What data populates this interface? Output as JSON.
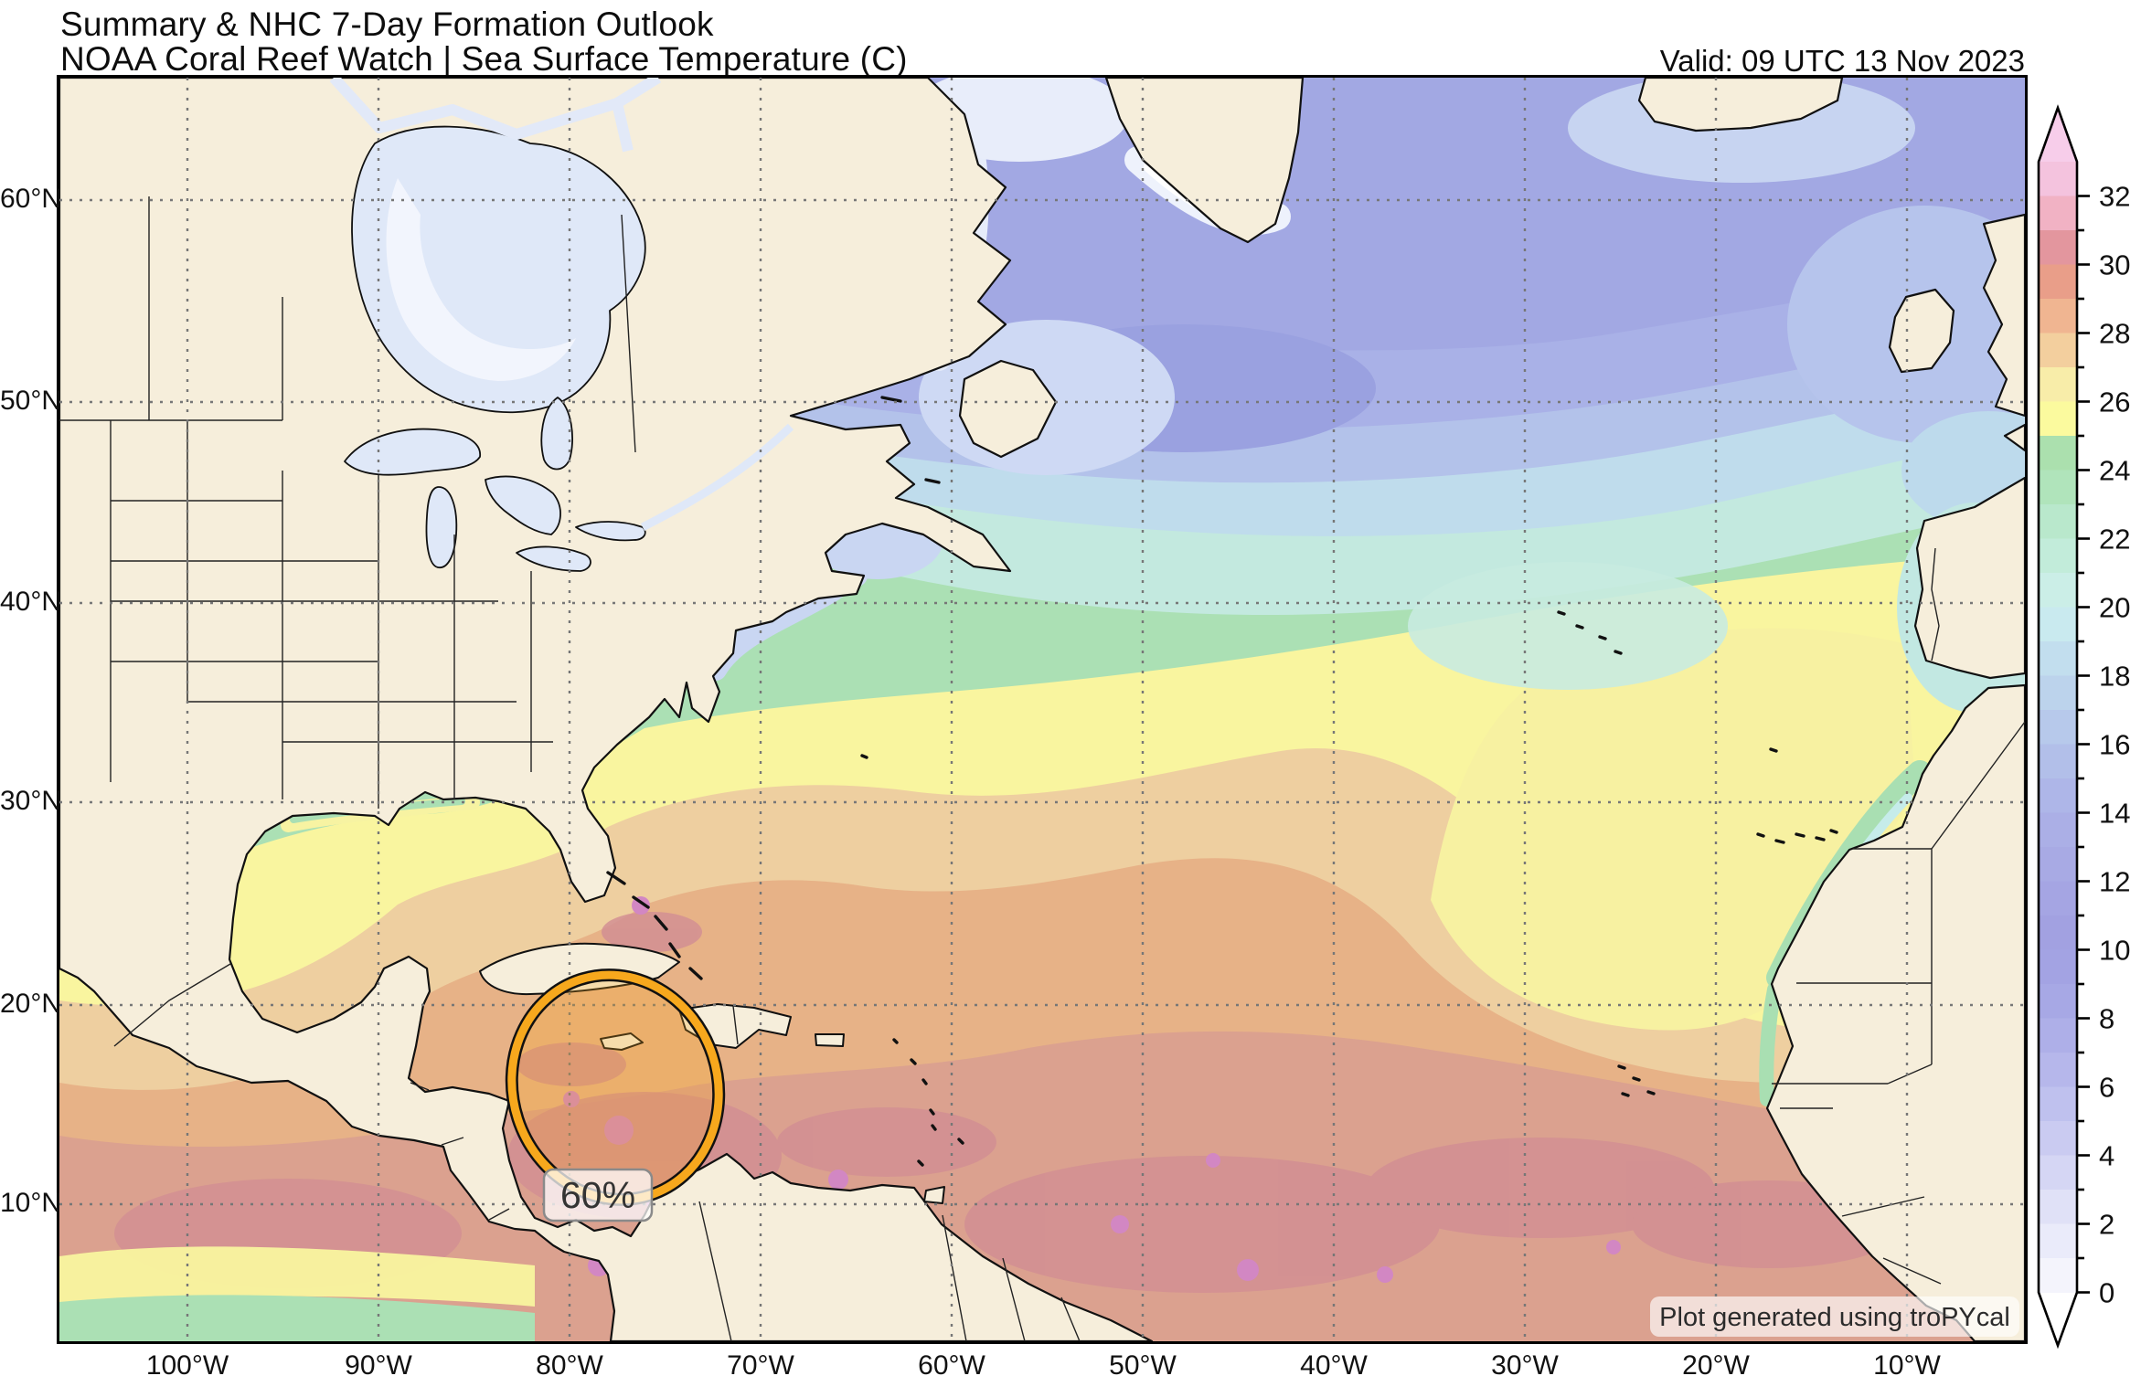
{
  "header": {
    "title_line1": "Summary & NHC 7-Day Formation Outlook",
    "title_line2": "NOAA Coral Reef Watch | Sea Surface Temperature (C)",
    "valid": "Valid: 09 UTC 13 Nov 2023"
  },
  "axes": {
    "lon_labels": [
      "100°W",
      "90°W",
      "80°W",
      "70°W",
      "60°W",
      "50°W",
      "40°W",
      "30°W",
      "20°W",
      "10°W"
    ],
    "lat_labels": [
      "60°N",
      "50°N",
      "40°N",
      "30°N",
      "20°N",
      "10°N"
    ]
  },
  "outlook": {
    "probability_label": "60%",
    "area_color": "#f7a81d"
  },
  "credit": "Plot generated using troPYcal",
  "colorbar": {
    "title": "Sea Surface Temperature (C)",
    "min": 0,
    "max": 32,
    "labeled_ticks": [
      32,
      30,
      28,
      26,
      24,
      22,
      20,
      18,
      16,
      14,
      12,
      10,
      8,
      6,
      4,
      2,
      0
    ],
    "band_colors_top_to_bottom": [
      "#f4c3de",
      "#f1b2c4",
      "#e3969e",
      "#e99e89",
      "#f0b591",
      "#f3cf9e",
      "#f8eda9",
      "#fbfa9e",
      "#abe0ae",
      "#b0e4bb",
      "#b9e8cc",
      "#c2ecda",
      "#cbeee7",
      "#c9eaef",
      "#c2deee",
      "#bcd3ec",
      "#b7c9eb",
      "#b2bfe9",
      "#aeb6e8",
      "#abafe6",
      "#a8aae4",
      "#a5a5e3",
      "#a2a1e1",
      "#a3a3e3",
      "#a7a8e5",
      "#aeafe8",
      "#b6b7eb",
      "#bfc1ee",
      "#cacbf1",
      "#d5d6f4",
      "#e0e1f7",
      "#eaebfa",
      "#f4f4fc"
    ],
    "above_max_color": "#f7cdea",
    "below_min_color": "#ffffff"
  },
  "map_colors": {
    "land": "#f6eedb",
    "coast": "#111111",
    "border_line": "#222222",
    "gridline": "#777777",
    "lake_water": "#dfe8f8",
    "ocean_green": "#abe0b4",
    "ocean_yellow": "#f9f59f",
    "ocean_yellow_east": "#f7f1a1",
    "ocean_tan": "#eecfa0",
    "ocean_orange": "#e7b287",
    "ocean_rose": "#dba18f",
    "ocean_deep_rose": "#d28f93",
    "ocean_hot_magenta": "#d287c3",
    "ocean_teal": "#c3e9df",
    "ocean_cyan": "#bfdcec",
    "ocean_blue_light": "#b3c2ea",
    "ocean_blue": "#a9b1e7",
    "ocean_blue_deep": "#a2a8e3",
    "ocean_blue_darkest": "#9aa1e0",
    "ocean_cold_pale": "#c9d6f2",
    "ocean_near_freezing": "#e8edfa"
  }
}
